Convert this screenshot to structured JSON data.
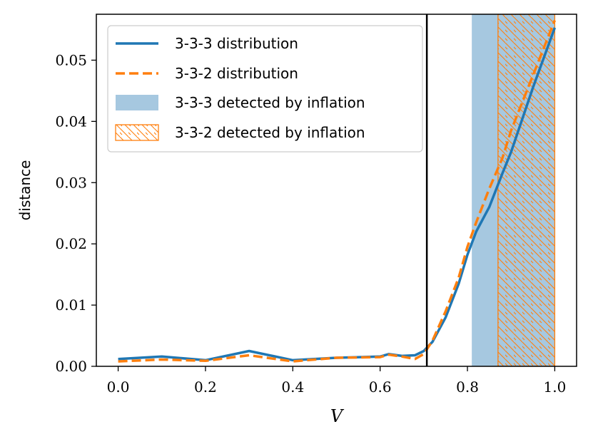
{
  "chart_data": {
    "type": "line",
    "xlabel": "V",
    "ylabel": "distance",
    "xlim": [
      -0.05,
      1.05
    ],
    "ylim": [
      0.0,
      0.0575
    ],
    "xticks": [
      0.0,
      0.2,
      0.4,
      0.6,
      0.8,
      1.0
    ],
    "xtick_labels": [
      "0.0",
      "0.2",
      "0.4",
      "0.6",
      "0.8",
      "1.0"
    ],
    "yticks": [
      0.0,
      0.01,
      0.02,
      0.03,
      0.04,
      0.05
    ],
    "ytick_labels": [
      "0.00",
      "0.01",
      "0.02",
      "0.03",
      "0.04",
      "0.05"
    ],
    "vertical_line_x": 0.707,
    "series": [
      {
        "name": "3-3-3 distribution",
        "style": "solid",
        "color": "#1f77b4",
        "x": [
          0.0,
          0.1,
          0.2,
          0.3,
          0.4,
          0.5,
          0.6,
          0.62,
          0.65,
          0.68,
          0.7,
          0.72,
          0.75,
          0.78,
          0.8,
          0.82,
          0.85,
          0.88,
          0.9,
          0.95,
          1.0
        ],
        "values": [
          0.0012,
          0.0016,
          0.001,
          0.0025,
          0.001,
          0.0014,
          0.0016,
          0.002,
          0.0017,
          0.0018,
          0.0025,
          0.004,
          0.008,
          0.0135,
          0.0182,
          0.022,
          0.026,
          0.0315,
          0.035,
          0.0455,
          0.0553
        ]
      },
      {
        "name": "3-3-2 distribution",
        "style": "dashed",
        "color": "#ff7f0e",
        "x": [
          0.0,
          0.1,
          0.2,
          0.3,
          0.4,
          0.5,
          0.6,
          0.62,
          0.65,
          0.68,
          0.7,
          0.72,
          0.75,
          0.78,
          0.8,
          0.82,
          0.85,
          0.88,
          0.9,
          0.95,
          1.0
        ],
        "values": [
          0.0008,
          0.0011,
          0.0009,
          0.0018,
          0.0008,
          0.0014,
          0.0015,
          0.0019,
          0.0016,
          0.0012,
          0.002,
          0.0042,
          0.009,
          0.0145,
          0.0195,
          0.0235,
          0.029,
          0.034,
          0.0385,
          0.0475,
          0.0565
        ]
      }
    ],
    "regions": [
      {
        "name": "3-3-3 detected by inflation",
        "x_start": 0.81,
        "x_end": 1.0,
        "fill": "#a6c8e0",
        "style": "filled"
      },
      {
        "name": "3-3-2 detected by inflation",
        "x_start": 0.87,
        "x_end": 1.0,
        "color": "#ff7f0e",
        "style": "hatched"
      }
    ],
    "legend_position": "top-left",
    "grid": false
  }
}
